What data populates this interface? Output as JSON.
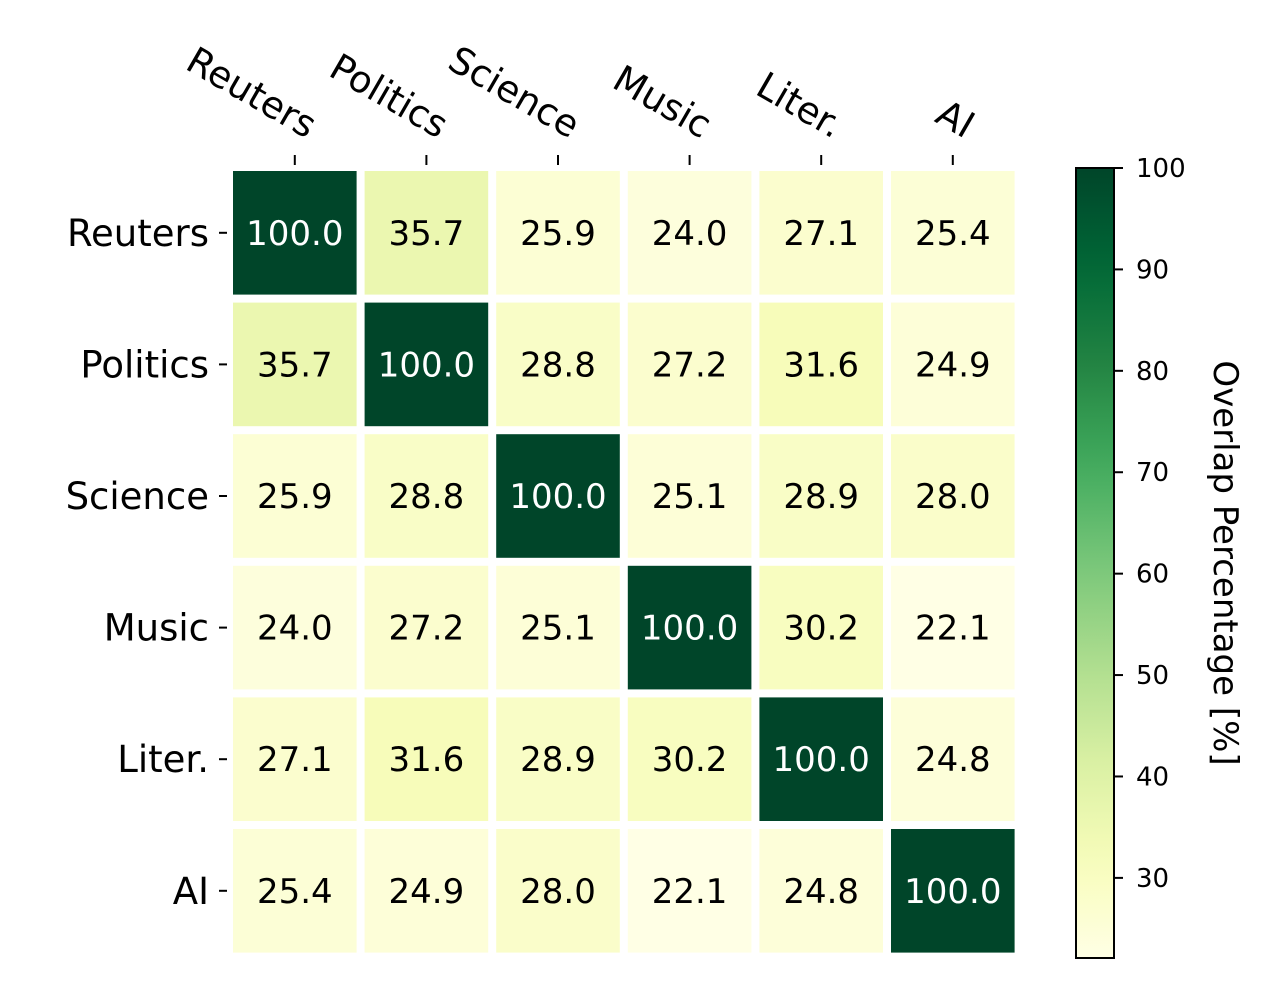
{
  "chart_data": {
    "type": "heatmap",
    "x_labels": [
      "Reuters",
      "Politics",
      "Science",
      "Music",
      "Liter.",
      "AI"
    ],
    "y_labels": [
      "Reuters",
      "Politics",
      "Science",
      "Music",
      "Liter.",
      "AI"
    ],
    "values": [
      [
        100.0,
        35.7,
        25.9,
        24.0,
        27.1,
        25.4
      ],
      [
        35.7,
        100.0,
        28.8,
        27.2,
        31.6,
        24.9
      ],
      [
        25.9,
        28.8,
        100.0,
        25.1,
        28.9,
        28.0
      ],
      [
        24.0,
        27.2,
        25.1,
        100.0,
        30.2,
        22.1
      ],
      [
        27.1,
        31.6,
        28.9,
        30.2,
        100.0,
        24.8
      ],
      [
        25.4,
        24.9,
        28.0,
        22.1,
        24.8,
        100.0
      ]
    ],
    "value_format": "0.0",
    "colormap": "YlGn",
    "colorbar": {
      "label": "Overlap Percentage [%]",
      "range": [
        22.1,
        100
      ],
      "ticks": [
        30,
        40,
        50,
        60,
        70,
        80,
        90,
        100
      ],
      "position": "right"
    },
    "x_tick_position": "top",
    "colors": {
      "high": "#004529",
      "low": "#ffffe5",
      "text_dark": "#000000",
      "text_light": "#ffffff",
      "grid": "#ffffff"
    }
  }
}
